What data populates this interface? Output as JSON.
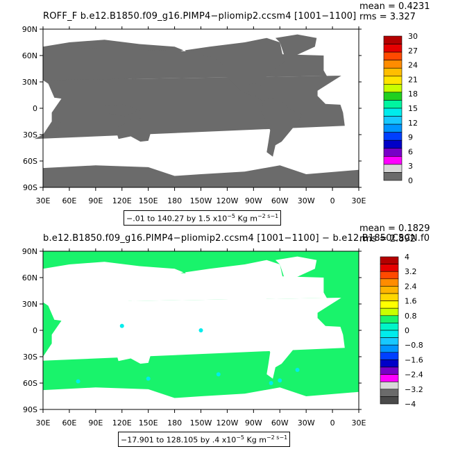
{
  "colors": {
    "land_top": "#6b6b6b",
    "ocean_bottom": "#19f36b",
    "land_bottom": "#ffffff",
    "ocean_top": "#ffffff"
  },
  "chart_data": [
    {
      "type": "heatmap",
      "title": "ROFF_F b.e12.B1850.f09_g16.PIMP4−pliomip2.ccsm4 [1001−1100]",
      "stats": {
        "mean_label": "mean",
        "mean": "0.4231",
        "rms_label": "rms",
        "rms": "3.327"
      },
      "xticks": [
        "30E",
        "60E",
        "90E",
        "120E",
        "150E",
        "180",
        "150W",
        "120W",
        "90W",
        "60W",
        "30W",
        "0",
        "30E"
      ],
      "yticks": [
        "90N",
        "60N",
        "30N",
        "0",
        "30S",
        "60S",
        "90S"
      ],
      "range_text": "−.01 to 140.27 by 1.5 x10",
      "range_exp": "−5",
      "units": "Kg m",
      "units_exp": "−2 s−1",
      "colorbar": {
        "labels": [
          "30",
          "27",
          "24",
          "21",
          "18",
          "15",
          "12",
          "9",
          "6",
          "3",
          "0"
        ],
        "colors": [
          "#b40000",
          "#e60000",
          "#ff4a00",
          "#ff8c00",
          "#ffbe00",
          "#ffe400",
          "#c8ff00",
          "#20d020",
          "#00f5a0",
          "#00ecec",
          "#18c8ff",
          "#0096ff",
          "#0040ff",
          "#0000c8",
          "#7800c8",
          "#ff00ff",
          "#d8d8d8",
          "#6b6b6b"
        ]
      }
    },
    {
      "type": "heatmap",
      "title": "b.e12.B1850.f09_g16.PIMP4−pliomip2.ccsm4 [1001−1100] − b.e12.B1850C5CN.f0",
      "stats": {
        "mean_label": "mean",
        "mean": "0.1829",
        "rms_label": "rms",
        "rms": "2.892"
      },
      "xticks": [
        "30E",
        "60E",
        "90E",
        "120E",
        "150E",
        "180",
        "150W",
        "120W",
        "90W",
        "60W",
        "30W",
        "0",
        "30E"
      ],
      "yticks": [
        "90N",
        "60N",
        "30N",
        "0",
        "30S",
        "60S",
        "90S"
      ],
      "range_text": "−17.901 to 128.105 by .4 x10",
      "range_exp": "−5",
      "units": "Kg m",
      "units_exp": "−2 s−1",
      "colorbar": {
        "labels": [
          "4",
          "3.2",
          "2.4",
          "1.6",
          "0.8",
          "0",
          "−0.8",
          "−1.6",
          "−2.4",
          "−3.2",
          "−4"
        ],
        "colors": [
          "#b40000",
          "#e60000",
          "#ff4a00",
          "#ff8c00",
          "#ffb400",
          "#ffd700",
          "#ffff00",
          "#c8ff00",
          "#19f36b",
          "#00f5c8",
          "#00ecec",
          "#18c8ff",
          "#0096ff",
          "#0040ff",
          "#0000c8",
          "#7800c8",
          "#ff00ff",
          "#d8d8d8",
          "#6b6b6b",
          "#4a4a4a"
        ]
      }
    }
  ]
}
